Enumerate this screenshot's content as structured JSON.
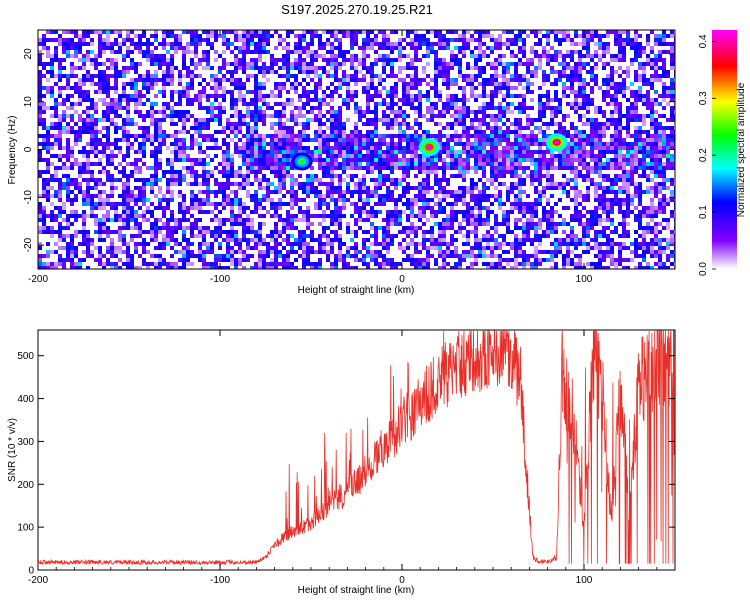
{
  "title": "S197.2025.270.19.25.R21",
  "chart_data": [
    {
      "type": "heatmap",
      "xlabel": "Height of straight line (km)",
      "ylabel": "Frequency (Hz)",
      "xlim": [
        -200,
        150
      ],
      "ylim": [
        -25,
        25
      ],
      "x_ticks": [
        -200,
        -100,
        0,
        100
      ],
      "y_ticks": [
        -20,
        -10,
        0,
        10,
        20
      ],
      "colorbar": {
        "label": "Normalized spectral amplitude",
        "range": [
          0.0,
          0.42
        ],
        "ticks": [
          0.0,
          0.1,
          0.2,
          0.3,
          0.4
        ],
        "tick_labels": [
          "0.0",
          "0.1",
          "0.2",
          "0.3",
          "0.4"
        ],
        "colormap": [
          "#ffffff",
          "#8000ff",
          "#0000ff",
          "#00ffff",
          "#00ff00",
          "#ffff00",
          "#ff0000",
          "#ff00ff"
        ]
      },
      "features": [
        {
          "x": 15,
          "y": 0.5,
          "value": 0.38
        },
        {
          "x": 85,
          "y": 1.5,
          "value": 0.4
        },
        {
          "x": -55,
          "y": -2.5,
          "value": 0.2
        }
      ]
    },
    {
      "type": "line",
      "xlabel": "Height of straight line (km)",
      "ylabel": "SNR (10 * v/v)",
      "xlim": [
        -200,
        150
      ],
      "ylim": [
        0,
        560
      ],
      "x_ticks": [
        -200,
        -100,
        0,
        100
      ],
      "y_ticks": [
        0,
        100,
        200,
        300,
        400,
        500
      ],
      "line_color": "#e8302a",
      "series_profile": {
        "x": [
          -200,
          -80,
          -75,
          -70,
          -60,
          -50,
          -40,
          -30,
          -20,
          -10,
          0,
          10,
          20,
          30,
          40,
          50,
          60,
          65,
          68,
          72,
          75,
          80,
          85,
          88,
          92,
          95,
          100,
          105,
          110,
          115,
          120,
          125,
          130,
          135,
          140,
          145,
          150
        ],
        "y": [
          18,
          18,
          30,
          60,
          90,
          110,
          150,
          180,
          230,
          290,
          340,
          390,
          440,
          480,
          500,
          510,
          500,
          440,
          250,
          30,
          20,
          20,
          30,
          470,
          400,
          320,
          100,
          510,
          420,
          120,
          430,
          130,
          440,
          470,
          490,
          500,
          520
        ]
      }
    }
  ]
}
